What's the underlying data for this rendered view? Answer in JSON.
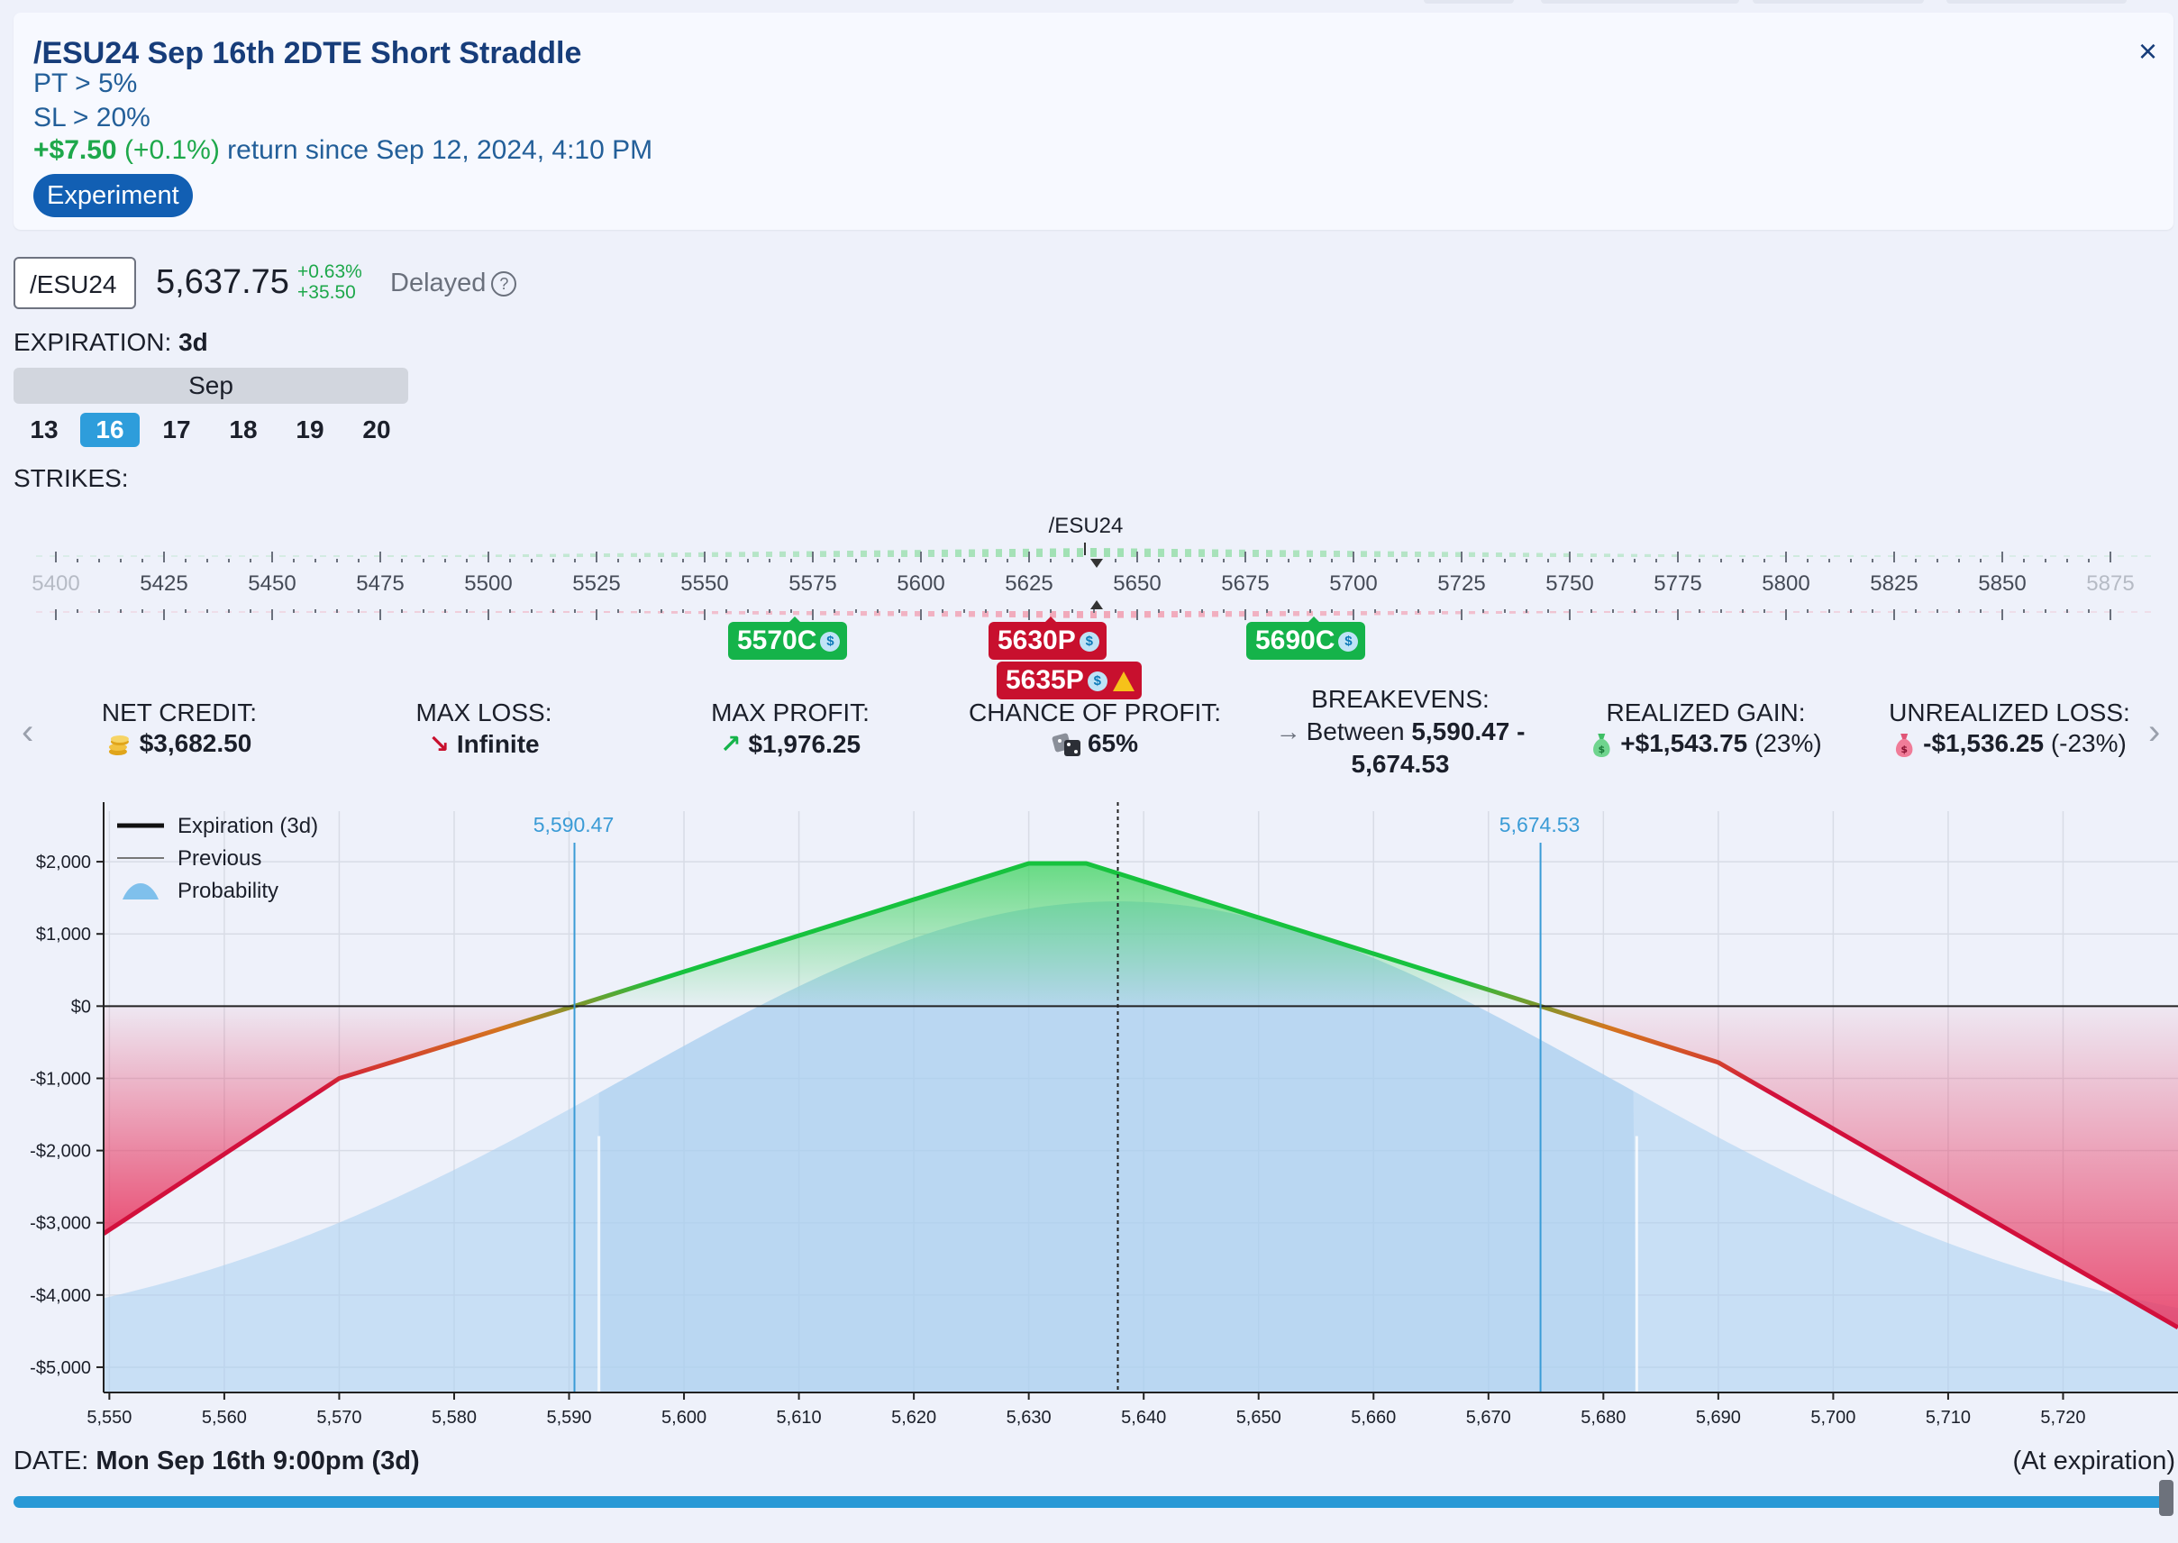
{
  "header": {
    "title": "/ESU24 Sep 16th 2DTE Short Straddle",
    "close_icon": "×",
    "pt": "PT > 5%",
    "sl": "SL > 20%",
    "return_amount": "+$7.50",
    "return_pct": "(+0.1%)",
    "return_text": "return since Sep 12, 2024, 4:10 PM",
    "badge": "Experiment"
  },
  "ticker": {
    "symbol": "/ESU24",
    "price": "5,637.75",
    "change_pct": "+0.63%",
    "change_abs": "+35.50",
    "delayed": "Delayed",
    "help_icon": "?"
  },
  "expiration": {
    "label": "EXPIRATION:",
    "value": "3d",
    "month": "Sep",
    "days": [
      "13",
      "16",
      "17",
      "18",
      "19",
      "20"
    ],
    "selected": "16"
  },
  "strikes": {
    "label": "STRIKES:",
    "underlying": "/ESU24",
    "ticks": [
      "5400",
      "5425",
      "5450",
      "5475",
      "5500",
      "5525",
      "5550",
      "5575",
      "5600",
      "5625",
      "5650",
      "5675",
      "5700",
      "5725",
      "5750",
      "5775",
      "5800",
      "5825",
      "5850",
      "5875"
    ],
    "legs": [
      {
        "label": "5570C",
        "color": "#15b34a"
      },
      {
        "label": "5630P",
        "color": "#c8102e"
      },
      {
        "label": "5635P",
        "color": "#c8102e"
      },
      {
        "label": "5690C",
        "color": "#15b34a"
      }
    ],
    "coin_icon": "$"
  },
  "stats": {
    "net_credit_label": "NET CREDIT:",
    "net_credit": "$3,682.50",
    "max_loss_label": "MAX LOSS:",
    "max_loss": "Infinite",
    "max_profit_label": "MAX PROFIT:",
    "max_profit": "$1,976.25",
    "chance_label": "CHANCE OF PROFIT:",
    "chance": "65%",
    "breakevens_label": "BREAKEVENS:",
    "breakevens_prefix": "Between",
    "breakevens_1": "5,590.47 -",
    "breakevens_2": "5,674.53",
    "realized_label": "REALIZED GAIN:",
    "realized": "+$1,543.75",
    "realized_pct": "(23%)",
    "unrealized_label": "UNREALIZED LOSS:",
    "unrealized": "-$1,536.25",
    "unrealized_pct": "(-23%)",
    "prev_icon": "‹",
    "next_icon": "›"
  },
  "chart_data": {
    "type": "line",
    "legend": [
      "Expiration (3d)",
      "Previous",
      "Probability"
    ],
    "legend_position": "top-left",
    "ylabels": [
      "$2,000",
      "$1,000",
      "$0",
      "-$1,000",
      "-$2,000",
      "-$3,000",
      "-$4,000",
      "-$5,000"
    ],
    "yticks": [
      2000,
      1000,
      0,
      -1000,
      -2000,
      -3000,
      -4000,
      -5000
    ],
    "ylim": [
      -5350,
      2700
    ],
    "xticks": [
      "5,550",
      "5,560",
      "5,570",
      "5,580",
      "5,590",
      "5,600",
      "5,610",
      "5,620",
      "5,630",
      "5,640",
      "5,650",
      "5,660",
      "5,670",
      "5,680",
      "5,690",
      "5,700",
      "5,710",
      "5,720"
    ],
    "xlim": [
      5549.5,
      5730
    ],
    "grid": true,
    "current_price": 5637.75,
    "breakevens": [
      {
        "value": 5590.47,
        "label": "5,590.47"
      },
      {
        "value": 5674.53,
        "label": "5,674.53"
      }
    ],
    "series": [
      {
        "name": "Expiration (3d)",
        "x": [
          5549.5,
          5570,
          5590.47,
          5630,
          5635,
          5674.53,
          5690,
          5730
        ],
        "y": [
          -3150,
          -1000,
          0,
          1976.25,
          1976.25,
          0,
          -780,
          -4450
        ]
      }
    ],
    "probability": {
      "mean": 5637.75,
      "sd": 43,
      "peak_value": 1450,
      "floor_value": -5350
    }
  },
  "date": {
    "label": "DATE:",
    "value": "Mon Sep 16th 9:00pm (3d)",
    "at_expiration": "(At expiration)"
  }
}
